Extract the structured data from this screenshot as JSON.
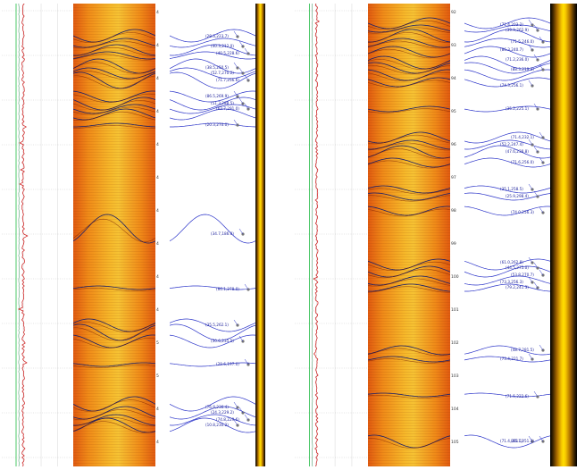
{
  "colors": {
    "gamma_curve": "#cc1111",
    "reference_line": "#22bb44",
    "sinusoid_on_image": "#1a1f6a",
    "tadpole_stick": "#2b34c9",
    "tadpole_head": "#777777"
  },
  "panels": [
    {
      "depth_labels": [
        "4",
        "4",
        "4",
        "4",
        "4",
        "4",
        "4",
        "4",
        "4",
        "4",
        "5",
        "5",
        "4",
        "4"
      ],
      "dip_labels": [
        "(28.3,223.7)",
        "(40.3,212.0)",
        "(40.5,228.6)",
        "(38.5,250.5)",
        "(52.7,270.2)",
        "(71.7,256.6)",
        "(86.5,269.9)",
        "(51.3,288.5)",
        "(62.7,291.0)",
        "(20.3,270.0)",
        "(34.7,186.0)",
        "(66.1,278.0)",
        "(35.5,262.1)",
        "(50.6,235.5)",
        "(29.6,197.0)",
        "(76.8,236.4)",
        "(24.3,229.2)",
        "(74.8,229.6)",
        "(10.8,230.2)"
      ]
    },
    {
      "depth_labels": [
        "92",
        "93",
        "94",
        "95",
        "96",
        "97",
        "98",
        "99",
        "100",
        "101",
        "102",
        "103",
        "104",
        "105"
      ],
      "dip_labels": [
        "(71.4,203.2)",
        "(39.9,262.9)",
        "(71.5,246.0)",
        "(86.3,240.7)",
        "(71.2,236.0)",
        "(88.3,219.3)",
        "(74.3,256.1)",
        "(35.2,225.1)",
        "(71.4,232.1)",
        "(52.2,247.4)",
        "(47.6,238.8)",
        "(71.6,256.0)",
        "(35.1,258.5)",
        "(25.9,298.4)",
        "(74.0,256.3)",
        "(61.0,262.8)",
        "(44.5,275.0)",
        "(53.8,270.7)",
        "(73.3,256.3)",
        "(79.2,241.3)",
        "(48.7,281.5)",
        "(73.4,321.7)",
        "(71.5,222.6)",
        "(65.1,251.3)",
        "(71.4,281.1)"
      ]
    }
  ]
}
